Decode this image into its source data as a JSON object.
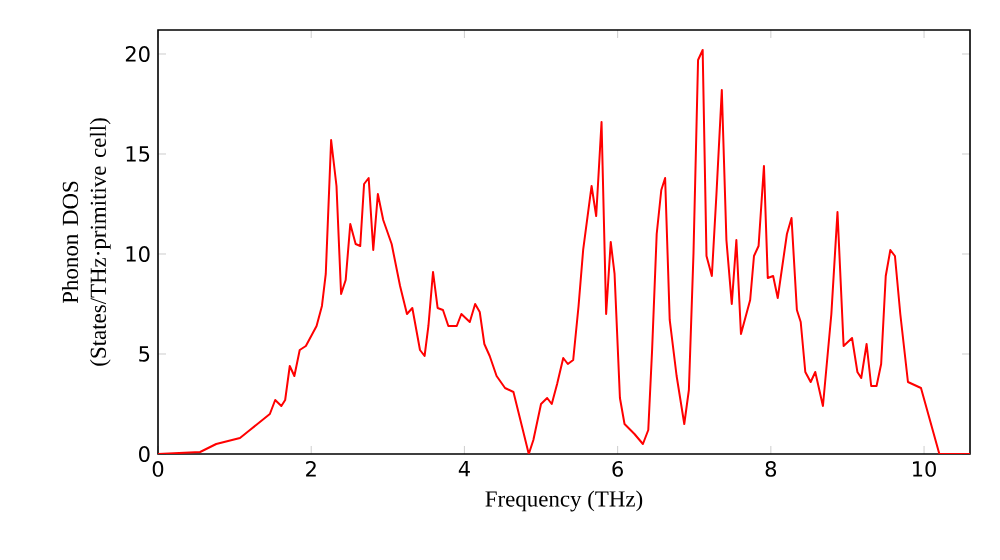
{
  "chart_data": {
    "type": "line",
    "xlabel": "Frequency (THz)",
    "ylabel": "Phonon DOS (States/THz·primitive cell)",
    "xlim": [
      0,
      10.6
    ],
    "ylim": [
      0,
      21.2
    ],
    "xticks": [
      0,
      2,
      4,
      6,
      8,
      10
    ],
    "yticks": [
      0,
      5,
      10,
      15,
      20
    ],
    "grid": false,
    "marker": "none",
    "line_style": "solid",
    "series": [
      {
        "color": "#ff0000",
        "x": [
          0,
          0.55,
          0.76,
          1.07,
          1.2,
          1.46,
          1.53,
          1.61,
          1.66,
          1.72,
          1.78,
          1.85,
          1.93,
          2.07,
          2.14,
          2.19,
          2.26,
          2.33,
          2.39,
          2.45,
          2.51,
          2.58,
          2.64,
          2.69,
          2.75,
          2.81,
          2.87,
          2.94,
          3.05,
          3.16,
          3.25,
          3.32,
          3.42,
          3.48,
          3.53,
          3.59,
          3.65,
          3.72,
          3.79,
          3.9,
          3.96,
          4.07,
          4.14,
          4.2,
          4.26,
          4.33,
          4.42,
          4.53,
          4.64,
          4.75,
          4.84,
          4.9,
          5.0,
          5.08,
          5.14,
          5.21,
          5.29,
          5.35,
          5.42,
          5.49,
          5.55,
          5.66,
          5.72,
          5.79,
          5.85,
          5.91,
          5.96,
          6.03,
          6.09,
          6.22,
          6.33,
          6.4,
          6.45,
          6.51,
          6.57,
          6.62,
          6.68,
          6.77,
          6.87,
          6.93,
          6.99,
          7.05,
          7.11,
          7.16,
          7.23,
          7.29,
          7.36,
          7.42,
          7.49,
          7.55,
          7.61,
          7.73,
          7.78,
          7.84,
          7.91,
          7.96,
          8.03,
          8.09,
          8.21,
          8.27,
          8.34,
          8.39,
          8.45,
          8.52,
          8.58,
          8.68,
          8.79,
          8.87,
          8.95,
          9.06,
          9.13,
          9.18,
          9.25,
          9.31,
          9.38,
          9.44,
          9.5,
          9.56,
          9.62,
          9.69,
          9.79,
          9.96,
          10.2,
          10.6
        ],
        "values": [
          0,
          0.1,
          0.5,
          0.8,
          1.2,
          2.0,
          2.7,
          2.4,
          2.7,
          4.4,
          3.9,
          5.2,
          5.4,
          6.4,
          7.4,
          9.0,
          15.7,
          13.4,
          8.0,
          8.7,
          11.5,
          10.5,
          10.4,
          13.5,
          13.8,
          10.2,
          13.0,
          11.7,
          10.5,
          8.4,
          7.0,
          7.3,
          5.2,
          4.9,
          6.4,
          9.1,
          7.3,
          7.2,
          6.4,
          6.4,
          7.0,
          6.6,
          7.5,
          7.1,
          5.5,
          4.9,
          3.9,
          3.3,
          3.1,
          1.4,
          0.0,
          0.7,
          2.5,
          2.8,
          2.5,
          3.5,
          4.8,
          4.5,
          4.7,
          7.4,
          10.2,
          13.4,
          11.9,
          16.6,
          7.0,
          10.6,
          9.0,
          2.8,
          1.5,
          1.0,
          0.5,
          1.2,
          5.2,
          11.0,
          13.2,
          13.8,
          6.7,
          3.9,
          1.5,
          3.2,
          10.0,
          19.7,
          20.2,
          9.9,
          8.9,
          13.0,
          18.2,
          10.7,
          7.5,
          10.7,
          6.0,
          7.7,
          9.9,
          10.4,
          14.4,
          8.8,
          8.9,
          7.8,
          11.0,
          11.8,
          7.2,
          6.6,
          4.1,
          3.6,
          4.1,
          2.4,
          7.0,
          12.1,
          5.4,
          5.8,
          4.1,
          3.8,
          5.5,
          3.4,
          3.4,
          4.5,
          8.9,
          10.2,
          9.9,
          7.0,
          3.6,
          3.3,
          0.0,
          0.0
        ]
      }
    ]
  }
}
